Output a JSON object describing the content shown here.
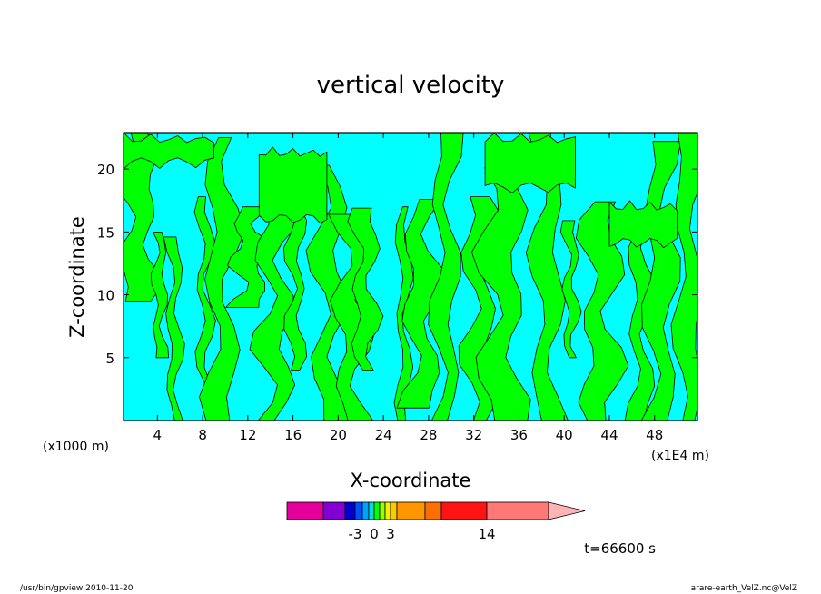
{
  "chart_data": {
    "type": "heatmap",
    "title": "vertical velocity",
    "xlabel": "X-coordinate",
    "ylabel": "Z-coordinate",
    "x_unit_left": "(x1000 m)",
    "x_unit_right": "(x1E4 m)",
    "x_ticks": [
      4,
      8,
      12,
      16,
      20,
      24,
      28,
      32,
      36,
      40,
      44,
      48
    ],
    "y_ticks": [
      5,
      10,
      15,
      20
    ],
    "xlim": [
      1,
      51.8
    ],
    "ylim": [
      0,
      22.9
    ],
    "contour_levels": [
      0
    ],
    "regions": [
      {
        "label": "positive",
        "color": "#00ff00"
      },
      {
        "label": "negative",
        "color": "#00ffff"
      }
    ],
    "colorbar": {
      "tick_labels": [
        "-3",
        "0",
        "3",
        "14"
      ],
      "colors": [
        "#e6009b",
        "#8200d2",
        "#0000d2",
        "#0050ff",
        "#00a0ff",
        "#00dcdc",
        "#00ff00",
        "#96ff00",
        "#f0f000",
        "#ffc800",
        "#ff9600",
        "#ff6e00",
        "#ff1414",
        "#ff7878",
        "#ffb4b4"
      ]
    },
    "time_label": "t=66600 s"
  },
  "footer": {
    "left": "/usr/bin/gpview   2010-11-20",
    "right": "arare-earth_VelZ.nc@VelZ"
  }
}
